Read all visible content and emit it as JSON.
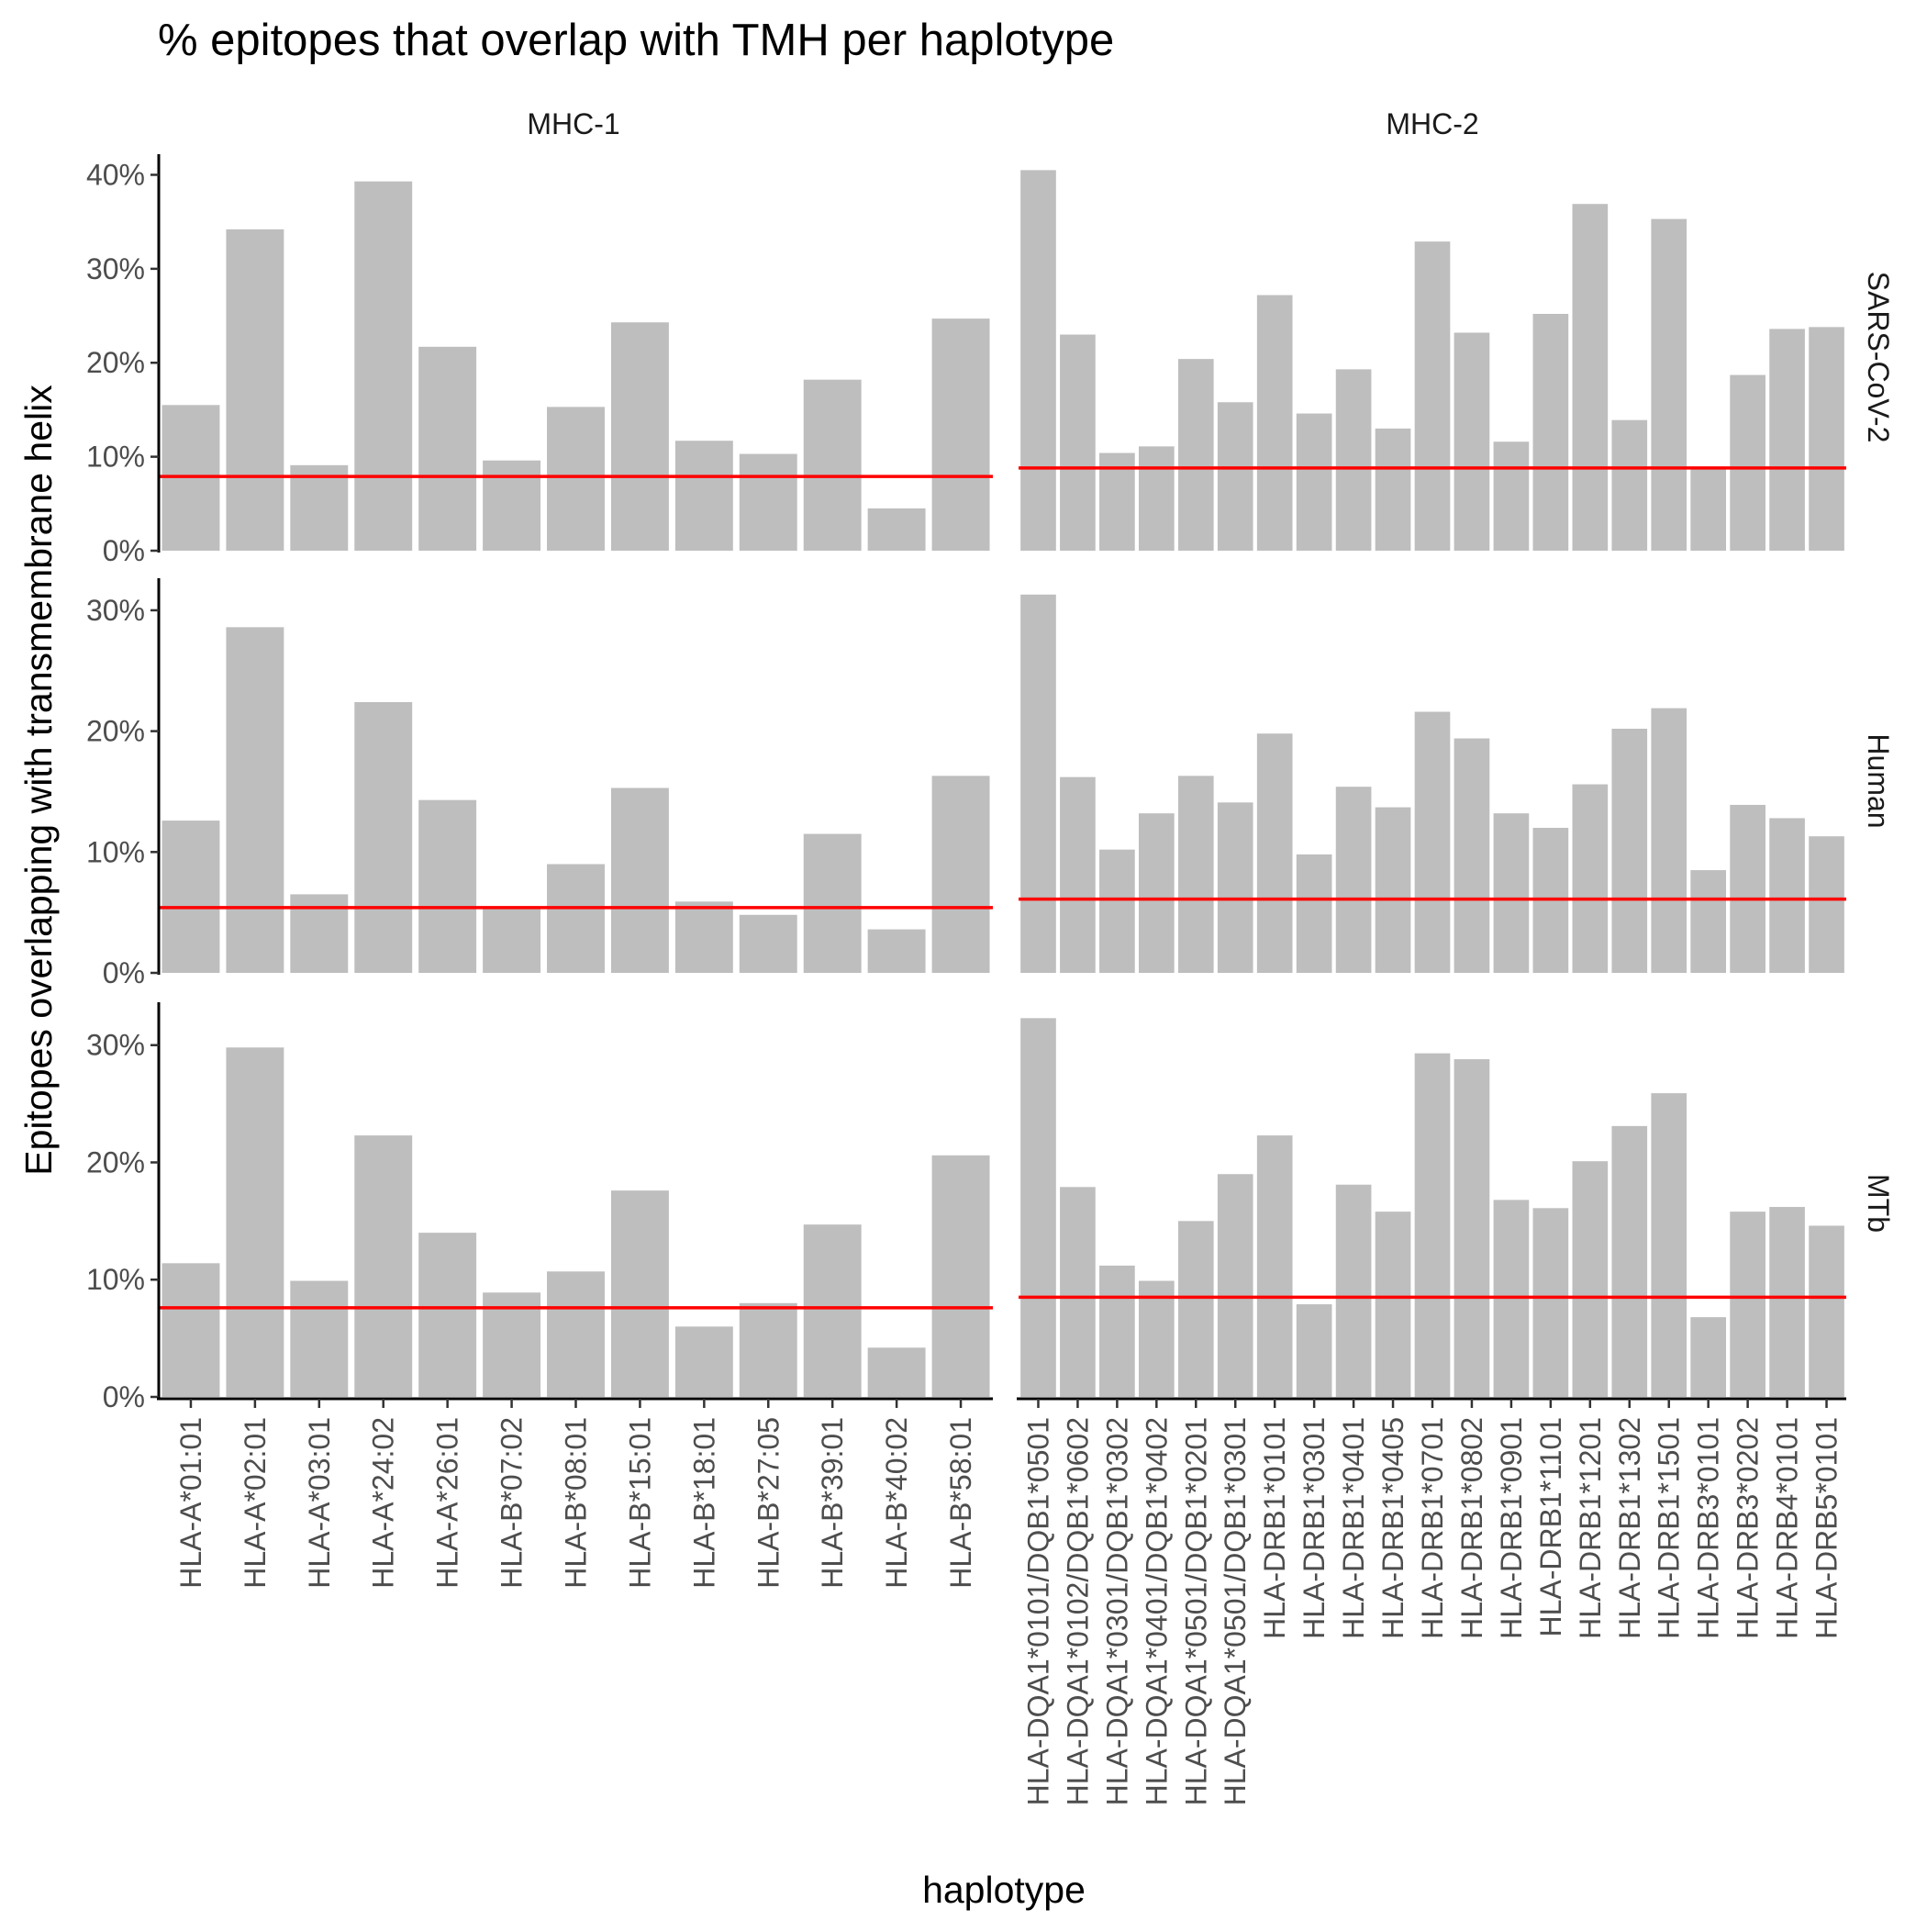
{
  "chart_data": {
    "type": "bar",
    "title": "% epitopes that overlap with TMH per haplotype",
    "xlabel": "haplotype",
    "ylabel": "Epitopes overlapping with transmembrane helix",
    "bar_color": "#bebebe",
    "reference_line_color": "#ff0000",
    "column_facets": [
      {
        "label": "MHC-1",
        "categories": [
          "HLA-A*01:01",
          "HLA-A*02:01",
          "HLA-A*03:01",
          "HLA-A*24:02",
          "HLA-A*26:01",
          "HLA-B*07:02",
          "HLA-B*08:01",
          "HLA-B*15:01",
          "HLA-B*18:01",
          "HLA-B*27:05",
          "HLA-B*39:01",
          "HLA-B*40:02",
          "HLA-B*58:01"
        ]
      },
      {
        "label": "MHC-2",
        "categories": [
          "HLA-DQA1*0101/DQB1*0501",
          "HLA-DQA1*0102/DQB1*0602",
          "HLA-DQA1*0301/DQB1*0302",
          "HLA-DQA1*0401/DQB1*0402",
          "HLA-DQA1*0501/DQB1*0201",
          "HLA-DQA1*0501/DQB1*0301",
          "HLA-DRB1*0101",
          "HLA-DRB1*0301",
          "HLA-DRB1*0401",
          "HLA-DRB1*0405",
          "HLA-DRB1*0701",
          "HLA-DRB1*0802",
          "HLA-DRB1*0901",
          "HLA-DRB1*1101",
          "HLA-DRB1*1201",
          "HLA-DRB1*1302",
          "HLA-DRB1*1501",
          "HLA-DRB3*0101",
          "HLA-DRB3*0202",
          "HLA-DRB4*0101",
          "HLA-DRB5*0101"
        ]
      }
    ],
    "row_facets": [
      {
        "label": "SARS-CoV-2",
        "ylim": [
          0,
          42
        ],
        "yticks": [
          0,
          10,
          20,
          30,
          40
        ],
        "ytick_labels": [
          "0%",
          "10%",
          "20%",
          "30%",
          "40%"
        ],
        "values": [
          [
            15.5,
            34.2,
            9.1,
            39.3,
            21.7,
            9.6,
            15.3,
            24.3,
            11.7,
            10.3,
            18.2,
            4.5,
            24.7
          ],
          [
            40.5,
            23.0,
            10.4,
            11.1,
            20.4,
            15.8,
            27.2,
            14.6,
            19.3,
            13.0,
            32.9,
            23.2,
            11.6,
            25.2,
            36.9,
            13.9,
            35.3,
            8.9,
            18.7,
            23.6,
            23.8
          ]
        ],
        "reference_lines": [
          7.9,
          8.8
        ]
      },
      {
        "label": "Human",
        "ylim": [
          0,
          32.5
        ],
        "yticks": [
          0,
          10,
          20,
          30
        ],
        "ytick_labels": [
          "0%",
          "10%",
          "20%",
          "30%"
        ],
        "values": [
          [
            12.6,
            28.6,
            6.5,
            22.4,
            14.3,
            5.3,
            9.0,
            15.3,
            5.9,
            4.8,
            11.5,
            3.6,
            16.3
          ],
          [
            31.3,
            16.2,
            10.2,
            13.2,
            16.3,
            14.1,
            19.8,
            9.8,
            15.4,
            13.7,
            21.6,
            19.4,
            13.2,
            12.0,
            15.6,
            20.2,
            21.9,
            8.5,
            13.9,
            12.8,
            11.3
          ]
        ],
        "reference_lines": [
          5.4,
          6.1
        ]
      },
      {
        "label": "MTb",
        "ylim": [
          0,
          33.5
        ],
        "yticks": [
          0,
          10,
          20,
          30
        ],
        "ytick_labels": [
          "0%",
          "10%",
          "20%",
          "30%"
        ],
        "values": [
          [
            11.4,
            29.8,
            9.9,
            22.3,
            14.0,
            8.9,
            10.7,
            17.6,
            6.0,
            8.0,
            14.7,
            4.2,
            20.6
          ],
          [
            32.3,
            17.9,
            11.2,
            9.9,
            15.0,
            19.0,
            22.3,
            7.9,
            18.1,
            15.8,
            29.3,
            28.8,
            16.8,
            16.1,
            20.1,
            23.1,
            25.9,
            6.8,
            15.8,
            16.2,
            14.6
          ]
        ],
        "reference_lines": [
          7.6,
          8.5
        ]
      }
    ]
  }
}
